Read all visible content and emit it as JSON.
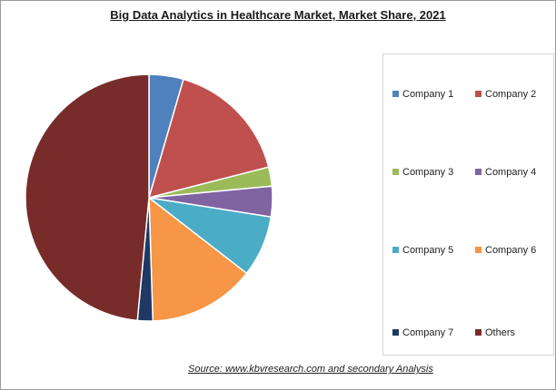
{
  "chart_data": {
    "type": "pie",
    "title": "Big Data Analytics in Healthcare Market, Market Share, 2021",
    "start_angle_deg": 0,
    "direction": "clockwise",
    "slices": [
      {
        "label": "Company 1",
        "value": 4.5,
        "color": "#4F81BD"
      },
      {
        "label": "Company 2",
        "value": 16.5,
        "color": "#C0504D"
      },
      {
        "label": "Company 3",
        "value": 2.5,
        "color": "#9BBB59"
      },
      {
        "label": "Company 4",
        "value": 4.0,
        "color": "#8064A2"
      },
      {
        "label": "Company 5",
        "value": 8.0,
        "color": "#4BACC6"
      },
      {
        "label": "Company 6",
        "value": 14.0,
        "color": "#F79646"
      },
      {
        "label": "Company 7",
        "value": 2.0,
        "color": "#1F3864"
      },
      {
        "label": "Others",
        "value": 48.5,
        "color": "#772C2A"
      }
    ],
    "legend_position": "right"
  },
  "source": "Source:  www.kbvresearch.com   and secondary Analysis"
}
